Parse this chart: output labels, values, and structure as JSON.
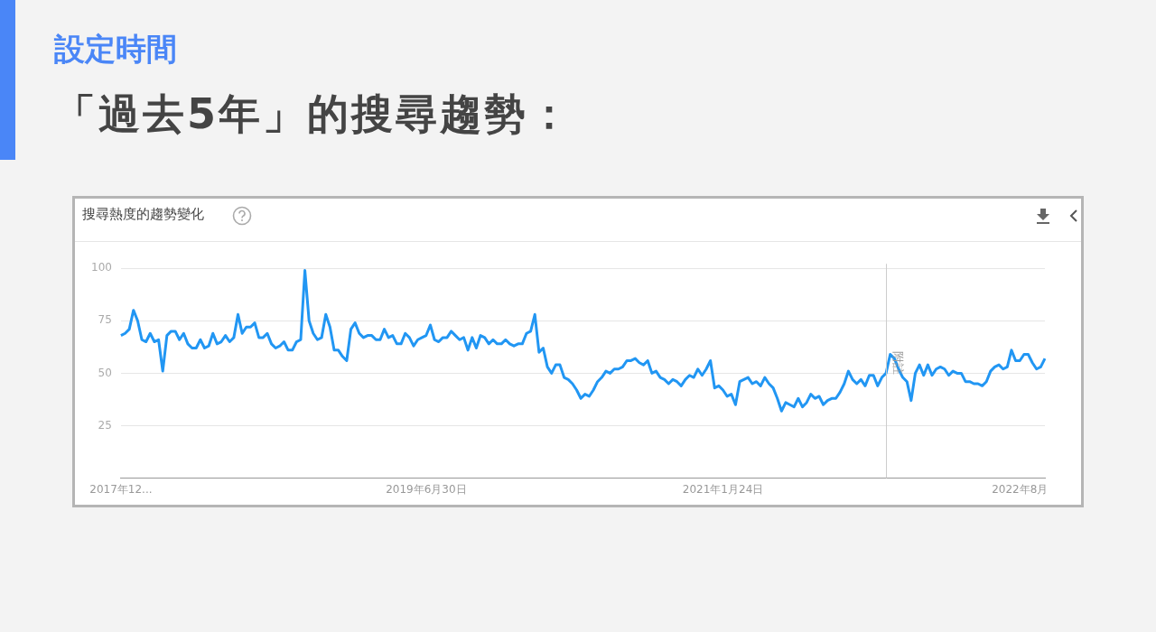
{
  "chart_data": {
    "type": "line",
    "subtitle": "設定時間",
    "title": "「過去5年」的搜尋趨勢：",
    "annotations": [
      "搜尋熱度的趨勢變化",
      "附註"
    ],
    "categories": [
      "2017年12...",
      null,
      null,
      null,
      null,
      null,
      null,
      null,
      null,
      null,
      null,
      null,
      null,
      null,
      null,
      null,
      null,
      null,
      null,
      null,
      null,
      null,
      null,
      null,
      null,
      null,
      null,
      null,
      null,
      null,
      null,
      null,
      null,
      null,
      null,
      null,
      null,
      null,
      null,
      null,
      null,
      null,
      null,
      null,
      null,
      null,
      null,
      null,
      null,
      null,
      null,
      null,
      null,
      null,
      null,
      null,
      null,
      null,
      null,
      null,
      null,
      null,
      null,
      null,
      null,
      null,
      null,
      null,
      null,
      null,
      null,
      null,
      null,
      "2019年6月30日",
      null,
      null,
      null,
      null,
      null,
      null,
      null,
      null,
      null,
      null,
      null,
      null,
      null,
      null,
      null,
      null,
      null,
      null,
      null,
      null,
      null,
      null,
      null,
      null,
      null,
      null,
      null,
      null,
      null,
      null,
      null,
      null,
      null,
      null,
      null,
      null,
      null,
      null,
      null,
      null,
      null,
      null,
      null,
      null,
      null,
      null,
      null,
      null,
      null,
      null,
      null,
      null,
      null,
      null,
      null,
      null,
      null,
      null,
      null,
      null,
      null,
      null,
      null,
      null,
      null,
      null,
      null,
      null,
      null,
      null,
      "2021年1月24日",
      null,
      null,
      null,
      null,
      null,
      null,
      null,
      null,
      null,
      null,
      null,
      null,
      null,
      null,
      null,
      null,
      null,
      null,
      null,
      null,
      null,
      null,
      null,
      null,
      null,
      null,
      null,
      null,
      null,
      null,
      null,
      null,
      null,
      null,
      null,
      null,
      null,
      null,
      null,
      null,
      null,
      null,
      null,
      null,
      null,
      null,
      null,
      null,
      null,
      null,
      null,
      null,
      null,
      null,
      null,
      null,
      null,
      null,
      null,
      null,
      null,
      null,
      null,
      null,
      null,
      null,
      null,
      null,
      null,
      null,
      "2022年8月",
      null,
      null,
      null,
      null,
      null,
      null
    ],
    "series": [
      {
        "color": "#2196f3",
        "values": [
          68,
          69,
          71,
          80,
          75,
          66,
          65,
          69,
          65,
          66,
          51,
          68,
          70,
          70,
          66,
          69,
          64,
          62,
          62,
          66,
          62,
          63,
          69,
          64,
          65,
          68,
          65,
          67,
          78,
          69,
          72,
          72,
          74,
          67,
          67,
          69,
          64,
          62,
          63,
          65,
          61,
          61,
          65,
          66,
          99,
          75,
          69,
          66,
          67,
          78,
          72,
          61,
          61,
          58,
          56,
          71,
          74,
          69,
          67,
          68,
          68,
          66,
          66,
          71,
          67,
          68,
          64,
          64,
          69,
          67,
          63,
          66,
          67,
          68,
          73,
          66,
          65,
          67,
          67,
          70,
          68,
          66,
          67,
          61,
          67,
          62,
          68,
          67,
          64,
          66,
          64,
          64,
          66,
          64,
          63,
          64,
          64,
          69,
          70,
          78,
          60,
          62,
          53,
          50,
          54,
          54,
          48,
          47,
          45,
          42,
          38,
          40,
          39,
          42,
          46,
          48,
          51,
          50,
          52,
          52,
          53,
          56,
          56,
          57,
          55,
          54,
          56,
          50,
          51,
          48,
          47,
          45,
          47,
          46,
          44,
          47,
          49,
          48,
          52,
          49,
          52,
          56,
          43,
          44,
          42,
          39,
          40,
          35,
          46,
          47,
          48,
          45,
          46,
          44,
          48,
          45,
          43,
          38,
          32,
          36,
          35,
          34,
          38,
          34,
          36,
          40,
          38,
          39,
          35,
          37,
          38,
          38,
          41,
          45,
          51,
          47,
          45,
          47,
          44,
          49,
          49,
          44,
          48,
          50,
          59,
          57,
          52,
          48,
          46,
          37,
          50,
          54,
          49,
          54,
          49,
          52,
          53,
          52,
          49,
          51,
          50,
          50,
          46,
          46,
          45,
          45,
          44,
          46,
          51,
          53,
          54,
          52,
          53,
          61,
          56,
          56,
          59,
          59,
          55,
          52,
          53,
          57
        ]
      }
    ],
    "ylim": [
      0,
      100
    ],
    "yticks": [
      {
        "value": 0,
        "label": null
      },
      25,
      50,
      75,
      100
    ],
    "grid": "y"
  }
}
